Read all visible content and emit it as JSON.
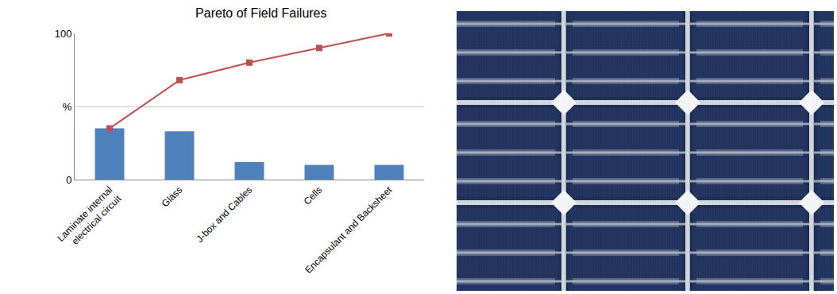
{
  "chart_data": {
    "type": "bar",
    "title": "Pareto of Field Failures",
    "categories": [
      "Laminate internal electrical circuit",
      "Glass",
      "J-box and Cables",
      "Cells",
      "Encapsulant and Backsheet"
    ],
    "series": [
      {
        "type": "bar",
        "color": "#4f81bd",
        "values": [
          35,
          33,
          12,
          10,
          10
        ]
      },
      {
        "type": "line",
        "color": "#c0504d",
        "marker": "square",
        "values": [
          35,
          68,
          80,
          90,
          100
        ]
      }
    ],
    "ylim": [
      0,
      100
    ],
    "yticks": [
      0,
      {
        "value": 50,
        "label": "%"
      },
      100
    ],
    "grid": true
  }
}
